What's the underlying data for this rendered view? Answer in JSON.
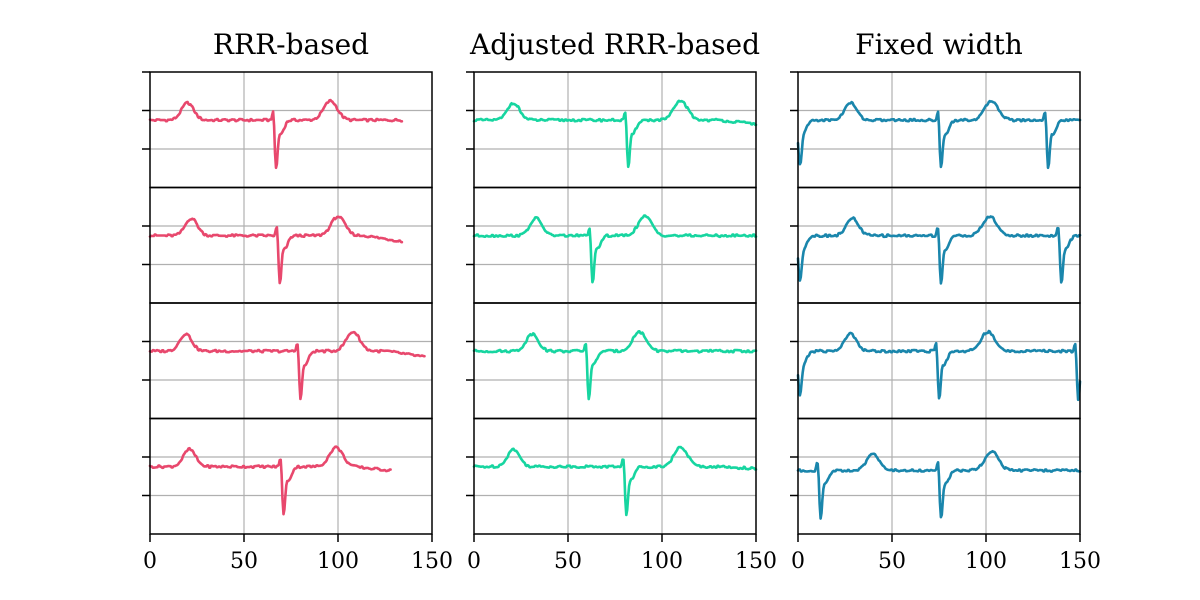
{
  "chart_data": [
    {
      "type": "line",
      "title": "RRR-based",
      "color": "#e8486d",
      "xlim": [
        0,
        150
      ],
      "xticks": [
        "0",
        "50",
        "100",
        "150"
      ],
      "rows": [
        {
          "n": 134,
          "peaks": [
            {
              "x": 20,
              "type": "p"
            },
            {
              "x": 67,
              "type": "qrs"
            },
            {
              "x": 96,
              "type": "t"
            }
          ],
          "base": 0.0,
          "end": 0.0
        },
        {
          "n": 134,
          "peaks": [
            {
              "x": 22,
              "type": "p"
            },
            {
              "x": 69,
              "type": "qrs"
            },
            {
              "x": 100,
              "type": "t"
            }
          ],
          "base": 0.0,
          "end": -0.15
        },
        {
          "n": 146,
          "peaks": [
            {
              "x": 19,
              "type": "p"
            },
            {
              "x": 80,
              "type": "qrs"
            },
            {
              "x": 108,
              "type": "t"
            }
          ],
          "base": 0.0,
          "end": -0.15
        },
        {
          "n": 128,
          "peaks": [
            {
              "x": 21,
              "type": "p"
            },
            {
              "x": 71,
              "type": "qrs"
            },
            {
              "x": 99,
              "type": "t"
            }
          ],
          "base": 0.0,
          "end": -0.1
        }
      ]
    },
    {
      "type": "line",
      "title": "Adjusted RRR-based",
      "color": "#17d5a0",
      "xlim": [
        0,
        150
      ],
      "xticks": [
        "0",
        "50",
        "100",
        "150"
      ],
      "rows": [
        {
          "n": 150,
          "peaks": [
            {
              "x": 21,
              "type": "p"
            },
            {
              "x": 82,
              "type": "qrs"
            },
            {
              "x": 110,
              "type": "t"
            }
          ],
          "base": 0.0,
          "end": -0.1
        },
        {
          "n": 150,
          "peaks": [
            {
              "x": 33,
              "type": "p"
            },
            {
              "x": 63,
              "type": "qrs"
            },
            {
              "x": 91,
              "type": "t"
            }
          ],
          "base": 0.0,
          "end": 0.0
        },
        {
          "n": 150,
          "peaks": [
            {
              "x": 31,
              "type": "p"
            },
            {
              "x": 61,
              "type": "qrs"
            },
            {
              "x": 88,
              "type": "t"
            }
          ],
          "base": 0.0,
          "end": 0.0
        },
        {
          "n": 150,
          "peaks": [
            {
              "x": 21,
              "type": "p"
            },
            {
              "x": 81,
              "type": "qrs"
            },
            {
              "x": 110,
              "type": "t"
            }
          ],
          "base": 0.0,
          "end": -0.05
        }
      ]
    },
    {
      "type": "line",
      "title": "Fixed width",
      "color": "#1a86ac",
      "xlim": [
        0,
        150
      ],
      "xticks": [
        "0",
        "50",
        "100",
        "150"
      ],
      "rows": [
        {
          "n": 150,
          "peaks": [
            {
              "x": 1,
              "type": "qrsend"
            },
            {
              "x": 28,
              "type": "p"
            },
            {
              "x": 76,
              "type": "qrs"
            },
            {
              "x": 103,
              "type": "t"
            },
            {
              "x": 133,
              "type": "qrs"
            }
          ],
          "base": 0.0,
          "end": 0.0
        },
        {
          "n": 150,
          "peaks": [
            {
              "x": 1,
              "type": "qrsend"
            },
            {
              "x": 29,
              "type": "p"
            },
            {
              "x": 76,
              "type": "qrs"
            },
            {
              "x": 102,
              "type": "t"
            },
            {
              "x": 140,
              "type": "qrs"
            }
          ],
          "base": 0.0,
          "end": 0.0
        },
        {
          "n": 150,
          "peaks": [
            {
              "x": 1,
              "type": "qrsend"
            },
            {
              "x": 28,
              "type": "p"
            },
            {
              "x": 75,
              "type": "qrs"
            },
            {
              "x": 101,
              "type": "t"
            },
            {
              "x": 149,
              "type": "qrscut"
            }
          ],
          "base": 0.0,
          "end": 0.0
        },
        {
          "n": 150,
          "peaks": [
            {
              "x": 12,
              "type": "qrs"
            },
            {
              "x": 40,
              "type": "p"
            },
            {
              "x": 76,
              "type": "qrs"
            },
            {
              "x": 103,
              "type": "t"
            }
          ],
          "base": -0.1,
          "end": -0.1
        }
      ]
    }
  ]
}
